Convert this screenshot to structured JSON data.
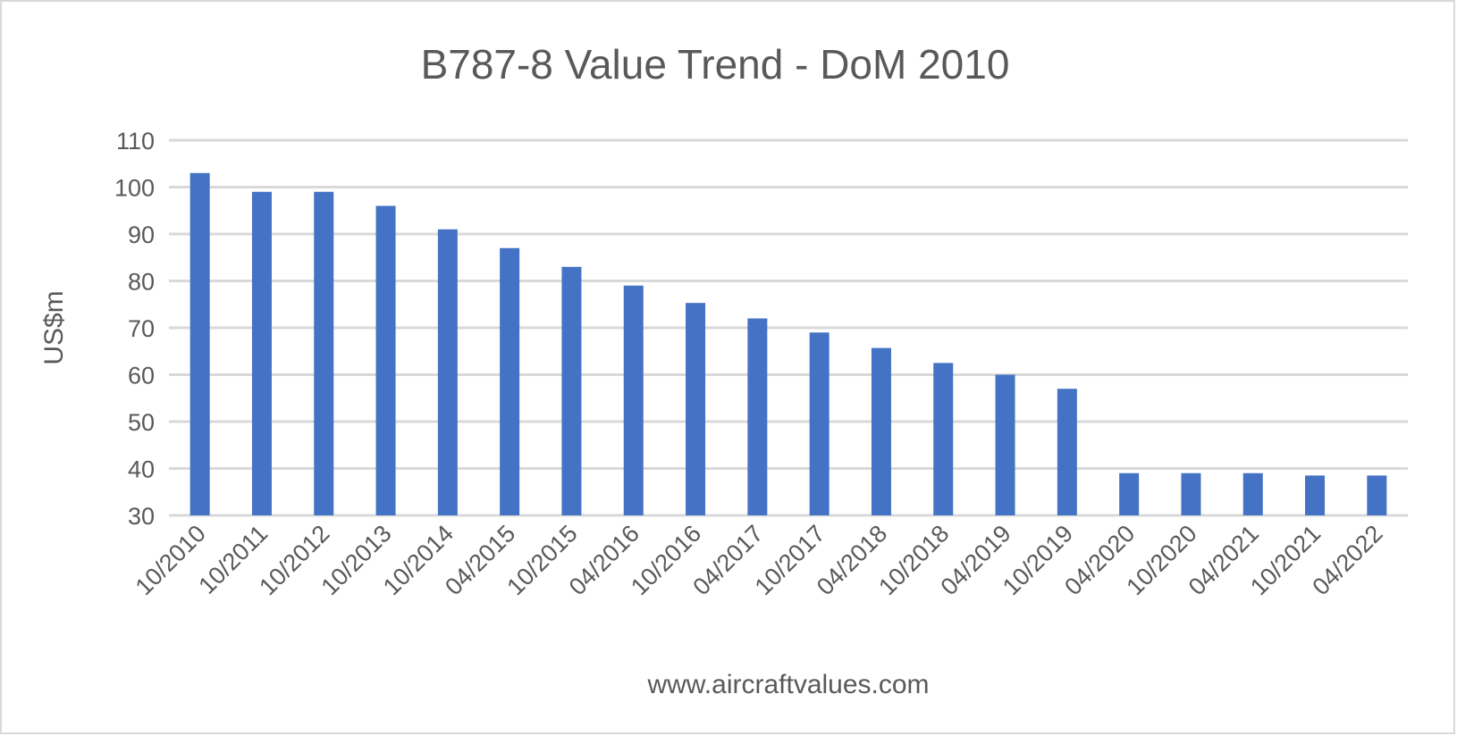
{
  "chart_data": {
    "type": "bar",
    "title": "B787-8 Value Trend - DoM 2010",
    "xlabel": "www.aircraftvalues.com",
    "ylabel": "US$m",
    "ylim": [
      30,
      110
    ],
    "yticks": [
      30,
      40,
      50,
      60,
      70,
      80,
      90,
      100,
      110
    ],
    "grid": true,
    "bar_color": "#4472c4",
    "categories": [
      "10/2010",
      "10/2011",
      "10/2012",
      "10/2013",
      "10/2014",
      "04/2015",
      "10/2015",
      "04/2016",
      "10/2016",
      "04/2017",
      "10/2017",
      "04/2018",
      "10/2018",
      "04/2019",
      "10/2019",
      "04/2020",
      "10/2020",
      "04/2021",
      "10/2021",
      "04/2022"
    ],
    "values": [
      103,
      99,
      99,
      96,
      91,
      87,
      83,
      79,
      75.3,
      72,
      69,
      65.7,
      62.5,
      60,
      57,
      39,
      39,
      39,
      38.5,
      38.5
    ]
  }
}
